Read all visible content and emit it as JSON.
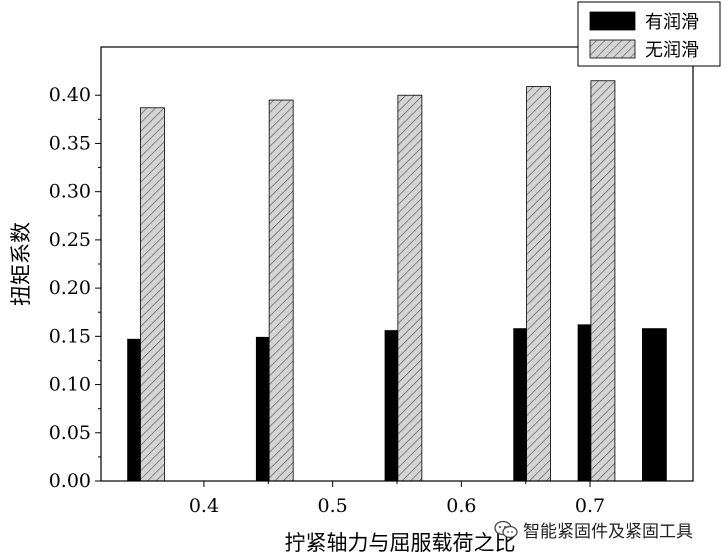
{
  "chart_data": {
    "type": "bar",
    "xlabel": "拧紧轴力与屈服载荷之比",
    "ylabel": "扭矩系数",
    "xlim": [
      0.32,
      0.78
    ],
    "ylim": [
      0.0,
      0.45
    ],
    "x_ticks": [
      0.4,
      0.5,
      0.6,
      0.7
    ],
    "y_ticks": [
      0.0,
      0.05,
      0.1,
      0.15,
      0.2,
      0.25,
      0.3,
      0.35,
      0.4
    ],
    "grid": false,
    "legend_position": "top-right",
    "series": [
      {
        "name": "有润滑",
        "color": "#000000",
        "pattern": "solid",
        "x": [
          0.35,
          0.45,
          0.55,
          0.65,
          0.7,
          0.75
        ],
        "values": [
          0.147,
          0.149,
          0.156,
          0.158,
          0.162,
          0.158
        ]
      },
      {
        "name": "无润滑",
        "color": "#c8c8c8",
        "pattern": "diagonal-hatch",
        "x": [
          0.36,
          0.46,
          0.56,
          0.66,
          0.71
        ],
        "values": [
          0.387,
          0.395,
          0.4,
          0.409,
          0.415
        ]
      }
    ]
  },
  "watermark": {
    "text": "智能紧固件及紧固工具",
    "icon": "wechat-icon"
  }
}
